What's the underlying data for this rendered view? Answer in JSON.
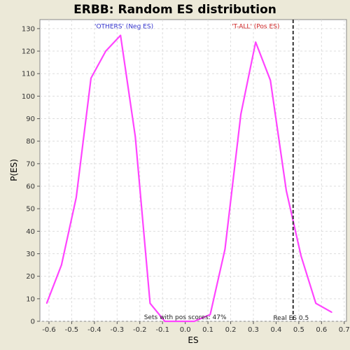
{
  "chart_data": {
    "type": "line",
    "title": "ERBB: Random ES distribution",
    "xlabel": "ES",
    "ylabel": "P(ES)",
    "xlim": [
      -0.64,
      0.71
    ],
    "ylim": [
      0,
      134
    ],
    "x_ticks": [
      -0.6,
      -0.5,
      -0.4,
      -0.3,
      -0.2,
      -0.1,
      0.0,
      0.1,
      0.2,
      0.3,
      0.4,
      0.5,
      0.6,
      0.7
    ],
    "y_ticks": [
      0,
      10,
      20,
      30,
      40,
      50,
      60,
      70,
      80,
      90,
      100,
      110,
      120,
      130
    ],
    "grid": true,
    "series": [
      {
        "color": "#ff44ff",
        "x": [
          -0.61,
          -0.545,
          -0.48,
          -0.415,
          -0.35,
          -0.285,
          -0.22,
          -0.155,
          -0.09,
          -0.025,
          0.04,
          0.11,
          0.175,
          0.245,
          0.31,
          0.375,
          0.445,
          0.51,
          0.575,
          0.645
        ],
        "values": [
          8,
          25,
          55,
          108,
          120,
          127,
          82,
          8,
          0,
          0,
          0,
          3,
          32,
          92,
          124,
          107,
          58,
          29,
          8,
          4
        ]
      }
    ],
    "real_es": {
      "x": 0.475,
      "label": "Real ES 0.5",
      "color": "#333333"
    },
    "annotations": [
      {
        "text": "'OTHERS' (Neg ES)",
        "color": "#3333cc",
        "x": -0.27,
        "y": 131
      },
      {
        "text": "'T-ALL' (Pos ES)",
        "color": "#cc2222",
        "x": 0.31,
        "y": 131
      },
      {
        "text": "Sets with pos scores: 47%",
        "color": "#222222",
        "x": 0.0,
        "y": 1.8
      }
    ]
  }
}
